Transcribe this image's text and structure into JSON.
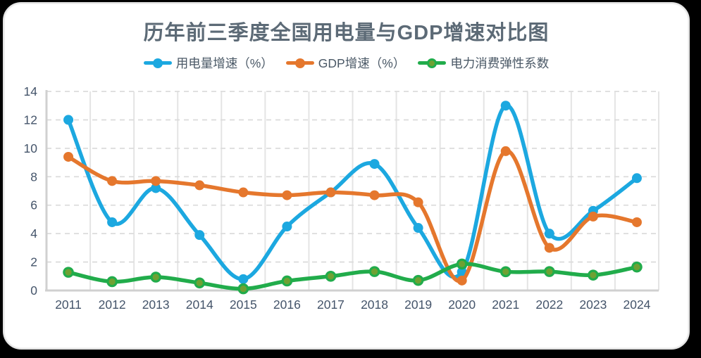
{
  "page": {
    "background_color": "#000000",
    "card_background": "#ffffff",
    "card_border_color": "#e3e3e3"
  },
  "chart_data": {
    "type": "line",
    "title": "历年前三季度全国用电量与GDP增速对比图",
    "title_color": "#5c6a76",
    "xlabel": "",
    "ylabel": "",
    "categories": [
      "2011",
      "2012",
      "2013",
      "2014",
      "2015",
      "2016",
      "2017",
      "2018",
      "2019",
      "2020",
      "2021",
      "2022",
      "2023",
      "2024"
    ],
    "series": [
      {
        "name": "用电量增速（%）",
        "color": "#1ca8e0",
        "marker": "circle",
        "values": [
          12.0,
          4.8,
          7.2,
          3.9,
          0.8,
          4.5,
          6.9,
          8.9,
          4.4,
          1.3,
          13.0,
          4.0,
          5.6,
          7.9
        ]
      },
      {
        "name": "GDP增速（%）",
        "color": "#e5772d",
        "marker": "circle",
        "values": [
          9.4,
          7.7,
          7.7,
          7.4,
          6.9,
          6.7,
          6.9,
          6.7,
          6.2,
          0.7,
          9.8,
          3.0,
          5.2,
          4.8
        ]
      },
      {
        "name": "电力消费弹性系数",
        "color": "#21ac4b",
        "marker": "circle",
        "marker_fill": "#6fa133",
        "values": [
          1.28,
          0.62,
          0.94,
          0.53,
          0.12,
          0.67,
          1.0,
          1.33,
          0.71,
          1.86,
          1.32,
          1.33,
          1.08,
          1.65
        ]
      }
    ],
    "ylim": [
      0,
      14
    ],
    "yticks": [
      "0",
      "2",
      "4",
      "6",
      "8",
      "10",
      "12",
      "14"
    ],
    "grid": true,
    "smooth": true,
    "legend_position": "top",
    "axis_label_color": "#44546a",
    "gridline_color_vertical": "#e4e4e4",
    "gridline_color_horizontal": "#dcdcdc",
    "axis_line_color": "#d0d0d0"
  }
}
